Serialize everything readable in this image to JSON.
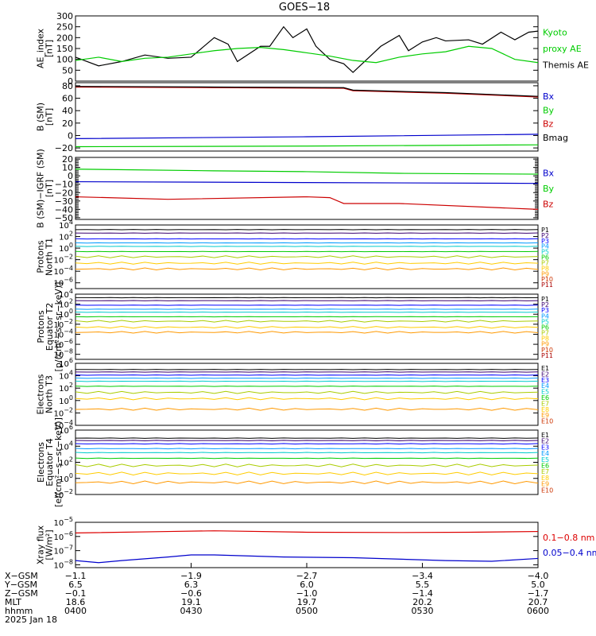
{
  "title": "GOES−18",
  "colors": {
    "black": "#000000",
    "green": "#00cc00",
    "red": "#cc0000",
    "blue": "#0000cc",
    "bright_green": "#00dd00",
    "bright_red": "#dd0000",
    "ramp": [
      "#000000",
      "#3a0070",
      "#0000ff",
      "#0099ff",
      "#00cccc",
      "#00cc00",
      "#aacc00",
      "#ffcc00",
      "#ff9900",
      "#cc3300",
      "#aa0000"
    ]
  },
  "x_range": [
    "04:00",
    "06:00"
  ],
  "panels": [
    {
      "id": "ae",
      "ylabel_lines": [
        "AE_index",
        "[nT]"
      ],
      "ylim": [
        0,
        300
      ],
      "scale": "linear",
      "yticks": [
        "300",
        "250",
        "200",
        "150",
        "100",
        "50",
        "0"
      ],
      "tick_values": [
        300,
        250,
        200,
        150,
        100,
        50,
        0
      ],
      "legend": [
        {
          "text": "Kyoto",
          "color": "#00cc00"
        },
        {
          "text": "proxy AE",
          "color": "#00cc00"
        },
        {
          "text": "Themis AE",
          "color": "#000000"
        }
      ]
    },
    {
      "id": "bsm",
      "ylabel_lines": [
        "B (SM)",
        "[nT]"
      ],
      "ylim": [
        -25,
        85
      ],
      "scale": "linear",
      "yticks": [
        "80",
        "60",
        "40",
        "20",
        "0",
        "−20"
      ],
      "tick_values": [
        80,
        60,
        40,
        20,
        0,
        -20
      ],
      "legend": [
        {
          "text": "Bx",
          "color": "#0000cc"
        },
        {
          "text": "By",
          "color": "#00cc00"
        },
        {
          "text": "Bz",
          "color": "#cc0000"
        },
        {
          "text": "Bmag",
          "color": "#000000"
        }
      ]
    },
    {
      "id": "bigrf",
      "ylabel_lines": [
        "B (SM)−IGRF (SM)",
        "[nT]"
      ],
      "ylim": [
        -52,
        22
      ],
      "scale": "linear",
      "yticks": [
        "20",
        "10",
        "0",
        "−10",
        "−20",
        "−30",
        "−40",
        "−50"
      ],
      "tick_values": [
        20,
        10,
        0,
        -10,
        -20,
        -30,
        -40,
        -50
      ],
      "legend": [
        {
          "text": "Bx",
          "color": "#0000cc"
        },
        {
          "text": "By",
          "color": "#00cc00"
        },
        {
          "text": "Bz",
          "color": "#cc0000"
        }
      ]
    },
    {
      "id": "pn",
      "ylabel_lines": [
        "Protons",
        "North T1"
      ],
      "ylim_log10": [
        -7,
        4
      ],
      "scale": "log",
      "yticks_exp": [
        "4",
        "2",
        "0",
        "−2",
        "−4",
        "−6"
      ],
      "tick_values": [
        4,
        2,
        0,
        -2,
        -4,
        -6
      ],
      "legend_labels": [
        "P1",
        "P2",
        "P3",
        "P4",
        "P5",
        "P6",
        "P7",
        "P8",
        "P9",
        "P10",
        "P11"
      ]
    },
    {
      "id": "pe",
      "ylabel_lines": [
        "Protons",
        "Equator T2",
        "[p/(cm²−s−sr−keV)]"
      ],
      "ylim_log10": [
        -9,
        4
      ],
      "scale": "log",
      "yticks_exp": [
        "4",
        "2",
        "0",
        "−2",
        "−4",
        "−6",
        "−8"
      ],
      "tick_values": [
        4,
        2,
        0,
        -2,
        -4,
        -6,
        -8
      ],
      "legend_labels": [
        "P1",
        "P2",
        "P3",
        "P4",
        "P5",
        "P6",
        "P7",
        "P8",
        "P9",
        "P10",
        "P11"
      ]
    },
    {
      "id": "en",
      "ylabel_lines": [
        "Electrons",
        "North T3"
      ],
      "ylim_log10": [
        -4,
        6
      ],
      "scale": "log",
      "yticks_exp": [
        "6",
        "4",
        "2",
        "0",
        "−2",
        "−4"
      ],
      "tick_values": [
        6,
        4,
        2,
        0,
        -2,
        -4
      ],
      "legend_labels": [
        "E1",
        "E2",
        "E3",
        "E4",
        "E5",
        "E6",
        "E7",
        "E8",
        "E9",
        "E10"
      ]
    },
    {
      "id": "ee",
      "ylabel_lines": [
        "Electrons",
        "Equator T4",
        "[e/(cm²−s−sr−keV)]"
      ],
      "ylim_log10": [
        -2,
        6
      ],
      "scale": "log",
      "yticks_exp": [
        "6",
        "4",
        "2",
        "0",
        "−2"
      ],
      "tick_values": [
        6,
        4,
        2,
        0,
        -2
      ],
      "legend_labels": [
        "E1",
        "E2",
        "E3",
        "E4",
        "E5",
        "E6",
        "E7",
        "E8",
        "E9",
        "E10"
      ]
    },
    {
      "id": "xray",
      "ylabel_lines": [
        "Xray flux",
        "[W/m²]"
      ],
      "ylim_log10": [
        -8.2,
        -5
      ],
      "scale": "log",
      "yticks_exp": [
        "−5",
        "−6",
        "−7",
        "−8"
      ],
      "tick_values": [
        -5,
        -6,
        -7,
        -8
      ],
      "legend": [
        {
          "text": "0.1−0.8 nm",
          "color": "#dd0000"
        },
        {
          "text": "0.05−0.4 nm",
          "color": "#0000cc"
        }
      ]
    }
  ],
  "orbit": {
    "row_labels": [
      "X−GSM",
      "Y−GSM",
      "Z−GSM",
      "MLT",
      "hhmm",
      "2025 Jan 18"
    ],
    "columns": [
      {
        "x": "−1.1",
        "y": "6.5",
        "z": "−0.1",
        "mlt": "18.6",
        "hhmm": "0400"
      },
      {
        "x": "−1.9",
        "y": "6.3",
        "z": "−0.6",
        "mlt": "19.1",
        "hhmm": "0430"
      },
      {
        "x": "−2.7",
        "y": "6.0",
        "z": "−1.0",
        "mlt": "19.7",
        "hhmm": "0500"
      },
      {
        "x": "−3.4",
        "y": "5.5",
        "z": "−1.4",
        "mlt": "20.2",
        "hhmm": "0530"
      },
      {
        "x": "−4.0",
        "y": "5.0",
        "z": "−1.7",
        "mlt": "20.7",
        "hhmm": "0600"
      }
    ]
  },
  "chart_data": [
    {
      "type": "line",
      "title": "GOES−18",
      "ylabel": "AE_index [nT]",
      "ylim": [
        0,
        300
      ],
      "x": [
        "04:00",
        "06:00"
      ],
      "series": [
        {
          "name": "Themis AE",
          "color": "#000000",
          "t": [
            0,
            0.05,
            0.1,
            0.15,
            0.2,
            0.25,
            0.3,
            0.33,
            0.35,
            0.4,
            0.42,
            0.45,
            0.47,
            0.5,
            0.52,
            0.55,
            0.58,
            0.6,
            0.63,
            0.66,
            0.7,
            0.72,
            0.75,
            0.78,
            0.8,
            0.85,
            0.88,
            0.92,
            0.95,
            0.98,
            1.0
          ],
          "v": [
            110,
            70,
            90,
            120,
            105,
            110,
            200,
            170,
            90,
            160,
            160,
            250,
            200,
            240,
            160,
            100,
            80,
            40,
            100,
            160,
            210,
            140,
            180,
            200,
            185,
            190,
            170,
            225,
            190,
            225,
            230
          ]
        },
        {
          "name": "Kyoto proxy AE",
          "color": "#00cc00",
          "t": [
            0,
            0.05,
            0.1,
            0.15,
            0.2,
            0.25,
            0.3,
            0.35,
            0.4,
            0.45,
            0.5,
            0.55,
            0.6,
            0.65,
            0.7,
            0.75,
            0.8,
            0.85,
            0.9,
            0.95,
            1.0
          ],
          "v": [
            95,
            110,
            90,
            105,
            110,
            125,
            140,
            150,
            155,
            145,
            130,
            115,
            95,
            85,
            110,
            125,
            135,
            160,
            150,
            100,
            85
          ]
        }
      ]
    },
    {
      "type": "line",
      "ylabel": "B (SM) [nT]",
      "ylim": [
        -25,
        85
      ],
      "series": [
        {
          "name": "Bz",
          "color": "#cc0000",
          "t": [
            0,
            0.3,
            0.58,
            0.6,
            0.8,
            1.0
          ],
          "v": [
            78,
            77,
            76,
            72,
            68,
            62
          ]
        },
        {
          "name": "Bmag",
          "color": "#000000",
          "t": [
            0,
            0.3,
            0.58,
            0.6,
            0.8,
            1.0
          ],
          "v": [
            79,
            78,
            77,
            73,
            69,
            63
          ]
        },
        {
          "name": "Bx",
          "color": "#0000cc",
          "t": [
            0,
            0.5,
            1.0
          ],
          "v": [
            -5,
            -2,
            2
          ]
        },
        {
          "name": "By",
          "color": "#00cc00",
          "t": [
            0,
            0.5,
            1.0
          ],
          "v": [
            -18,
            -17,
            -15
          ]
        }
      ]
    },
    {
      "type": "line",
      "ylabel": "B (SM)−IGRF (SM) [nT]",
      "ylim": [
        -52,
        22
      ],
      "series": [
        {
          "name": "By",
          "color": "#00cc00",
          "t": [
            0,
            0.3,
            0.5,
            0.7,
            1.0
          ],
          "v": [
            8,
            6,
            5,
            3,
            2
          ]
        },
        {
          "name": "Bx",
          "color": "#0000cc",
          "t": [
            0,
            0.5,
            1.0
          ],
          "v": [
            -7,
            -8,
            -9
          ]
        },
        {
          "name": "Bz",
          "color": "#cc0000",
          "t": [
            0,
            0.2,
            0.5,
            0.55,
            0.58,
            0.7,
            1.0
          ],
          "v": [
            -25,
            -28,
            -25,
            -26,
            -33,
            -33,
            -40
          ]
        }
      ]
    },
    {
      "type": "line",
      "scale": "log",
      "ylabel": "Protons North T1",
      "series_log10": [
        3.2,
        2.6,
        1.6,
        0.9,
        0.3,
        -0.6,
        -1.5,
        -2.6,
        -3.6
      ]
    },
    {
      "type": "line",
      "scale": "log",
      "ylabel": "Protons Equator T2",
      "series_log10": [
        3.3,
        2.7,
        1.8,
        1.0,
        0.4,
        -0.5,
        -1.4,
        -2.6,
        -3.6
      ]
    },
    {
      "type": "line",
      "scale": "log",
      "ylabel": "Electrons North T3",
      "series_log10": [
        5.0,
        4.6,
        4.1,
        3.6,
        3.1,
        2.3,
        1.3,
        0.3,
        -1.4
      ]
    },
    {
      "type": "line",
      "scale": "log",
      "ylabel": "Electrons Equator T4",
      "series_log10": [
        5.0,
        4.7,
        4.3,
        3.7,
        3.2,
        2.5,
        1.6,
        0.6,
        -0.5
      ]
    },
    {
      "type": "line",
      "scale": "log",
      "ylabel": "Xray flux [W/m²]",
      "series": [
        {
          "name": "0.1−0.8 nm",
          "color": "#dd0000",
          "t": [
            0,
            0.2,
            0.3,
            0.5,
            0.7,
            0.85,
            1.0
          ],
          "v_log10": [
            -5.75,
            -5.65,
            -5.6,
            -5.7,
            -5.72,
            -5.7,
            -5.65
          ]
        },
        {
          "name": "0.05−0.4 nm",
          "color": "#0000cc",
          "t": [
            0,
            0.05,
            0.1,
            0.2,
            0.25,
            0.3,
            0.45,
            0.6,
            0.8,
            0.9,
            1.0
          ],
          "v_log10": [
            -7.7,
            -7.85,
            -7.7,
            -7.45,
            -7.3,
            -7.3,
            -7.45,
            -7.5,
            -7.7,
            -7.75,
            -7.55
          ]
        }
      ]
    }
  ]
}
